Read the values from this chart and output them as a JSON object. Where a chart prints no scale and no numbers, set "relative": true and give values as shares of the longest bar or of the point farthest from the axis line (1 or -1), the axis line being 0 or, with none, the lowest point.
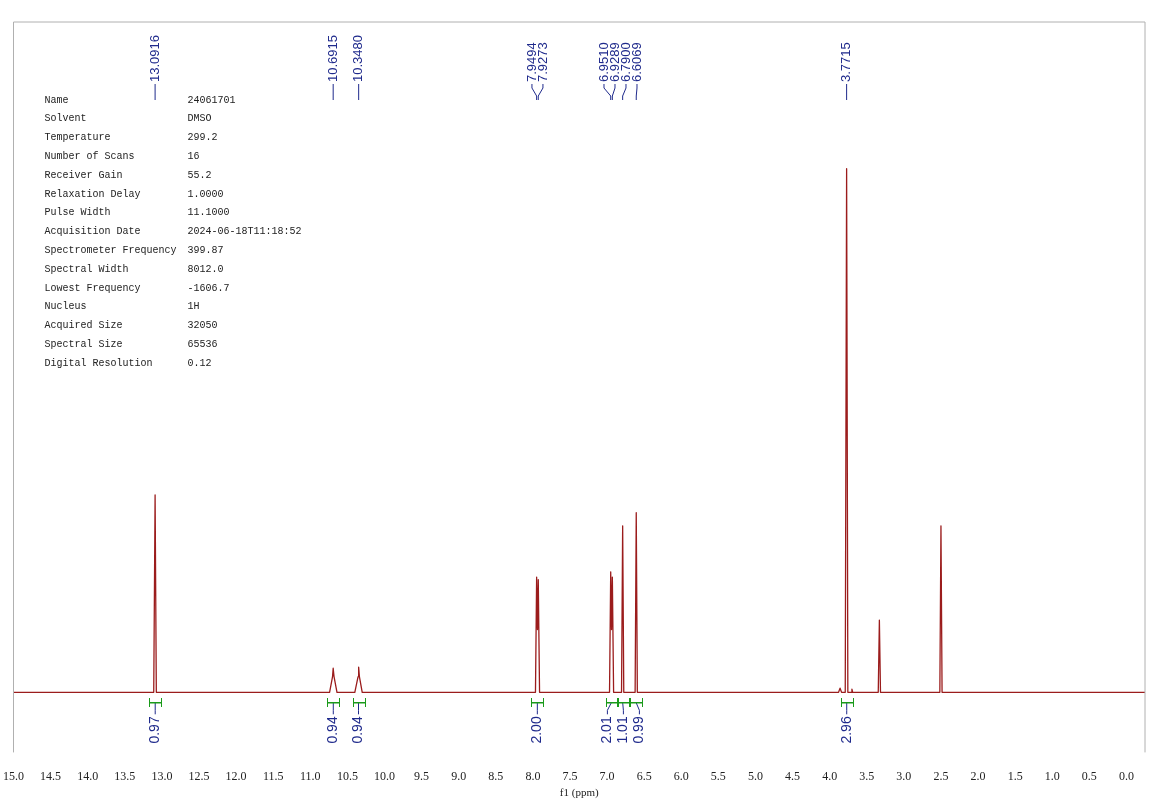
{
  "chart_data": {
    "type": "line",
    "relative": true,
    "xlabel": "f1 (ppm)",
    "xlim": [
      15.0,
      -0.25
    ],
    "xticks": [
      {
        "value": 15,
        "label": "15.0"
      },
      14.5,
      {
        "value": 14,
        "label": "14.0"
      },
      13.5,
      {
        "value": 13,
        "label": "13.0"
      },
      12.5,
      {
        "value": 12,
        "label": "12.0"
      },
      11.5,
      {
        "value": 11,
        "label": "11.0"
      },
      10.5,
      {
        "value": 10,
        "label": "10.0"
      },
      9.5,
      {
        "value": 9,
        "label": "9.0"
      },
      8.5,
      {
        "value": 8,
        "label": "8.0"
      },
      7.5,
      {
        "value": 7,
        "label": "7.0"
      },
      6.5,
      {
        "value": 6,
        "label": "6.0"
      },
      5.5,
      {
        "value": 5,
        "label": "5.0"
      },
      4.5,
      {
        "value": 4,
        "label": "4.0"
      },
      3.5,
      {
        "value": 3,
        "label": "3.0"
      },
      2.5,
      {
        "value": 2,
        "label": "2.0"
      },
      1.5,
      {
        "value": 1,
        "label": "1.0"
      },
      0.5,
      {
        "value": 0,
        "label": "0.0"
      }
    ],
    "grid": false,
    "legend": false,
    "marker": "none",
    "line_style": "solid",
    "series": [
      {
        "color": "#9b1c1c",
        "x": [
          15.0,
          13.11,
          13.0916,
          13.075,
          10.74,
          10.7,
          10.6915,
          10.68,
          10.64,
          10.4,
          10.356,
          10.348,
          10.338,
          10.3,
          7.965,
          7.9494,
          7.938,
          7.9273,
          7.91,
          6.967,
          6.951,
          6.94,
          6.9289,
          6.912,
          6.805,
          6.79,
          6.775,
          6.622,
          6.6069,
          6.592,
          3.88,
          3.86,
          3.84,
          3.79,
          3.7715,
          3.755,
          3.71,
          3.7,
          3.69,
          3.345,
          3.33,
          3.315,
          2.515,
          2.5,
          2.485,
          -0.25
        ],
        "values": [
          0,
          0,
          0.377,
          0,
          0,
          0.03,
          0.046,
          0.03,
          0,
          0,
          0.03,
          0.048,
          0.03,
          0,
          0,
          0.22,
          0.12,
          0.215,
          0,
          0,
          0.23,
          0.12,
          0.22,
          0,
          0,
          0.318,
          0,
          0,
          0.343,
          0,
          0,
          0.008,
          0,
          0,
          1,
          0,
          0,
          0.006,
          0,
          0,
          0.138,
          0,
          0,
          0.318,
          0,
          0
        ]
      }
    ],
    "annotations": [
      {
        "text": "13.0916",
        "x": 13.0916
      },
      {
        "text": "10.6915",
        "x": 10.6915
      },
      {
        "text": "10.3480",
        "x": 10.348
      },
      {
        "text": "7.9494",
        "x": 7.9494
      },
      {
        "text": "7.9273",
        "x": 7.9273
      },
      {
        "text": "6.9510",
        "x": 6.951
      },
      {
        "text": "6.9289",
        "x": 6.9289
      },
      {
        "text": "6.7900",
        "x": 6.79
      },
      {
        "text": "6.6069",
        "x": 6.6069
      },
      {
        "text": "3.7715",
        "x": 3.7715
      },
      {
        "text": "0.97",
        "x": 13.09,
        "y": 0
      },
      {
        "text": "0.94",
        "x": 10.69,
        "y": 0
      },
      {
        "text": "0.94",
        "x": 10.35,
        "y": 0
      },
      {
        "text": "2.00",
        "x": 7.94,
        "y": 0
      },
      {
        "text": "2.01",
        "x": 6.94,
        "y": 0
      },
      {
        "text": "1.01",
        "x": 6.79,
        "y": 0
      },
      {
        "text": "0.99",
        "x": 6.61,
        "y": 0
      },
      {
        "text": "2.96",
        "x": 3.77,
        "y": 0
      },
      "Name\t24061701",
      "Solvent\tDMSO",
      "Temperature\t299.2",
      "Number of Scans\t16",
      "Receiver Gain\t55.2",
      "Relaxation Delay\t1.0000",
      "Pulse Width\t11.1000",
      "Acquisition Date\t2024-06-18T11:18:52",
      "Spectrometer Frequency\t399.87",
      "Spectral Width\t8012.0",
      "Lowest Frequency\t-1606.7",
      "Nucleus\t1H",
      "Acquired Size\t32050",
      "Spectral Size\t65536",
      "Digital Resolution\t0.12"
    ]
  }
}
